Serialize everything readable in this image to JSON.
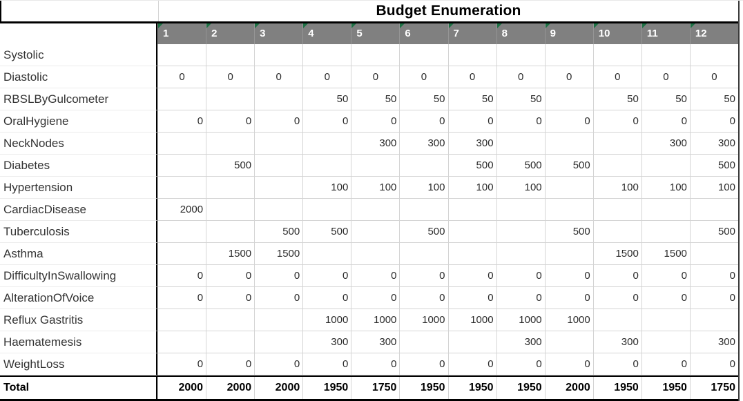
{
  "title": "Budget Enumeration",
  "columns": [
    "1",
    "2",
    "3",
    "4",
    "5",
    "6",
    "7",
    "8",
    "9",
    "10",
    "11",
    "12"
  ],
  "rows": [
    {
      "label": "Systolic",
      "align": "right",
      "values": [
        "",
        "",
        "",
        "",
        "",
        "",
        "",
        "",
        "",
        "",
        "",
        ""
      ]
    },
    {
      "label": "Diastolic",
      "align": "center",
      "values": [
        "0",
        "0",
        "0",
        "0",
        "0",
        "0",
        "0",
        "0",
        "0",
        "0",
        "0",
        "0"
      ]
    },
    {
      "label": "RBSLByGulcometer",
      "align": "right",
      "values": [
        "",
        "",
        "",
        "50",
        "50",
        "50",
        "50",
        "50",
        "",
        "50",
        "50",
        "50"
      ]
    },
    {
      "label": "OralHygiene",
      "align": "right",
      "values": [
        "0",
        "0",
        "0",
        "0",
        "0",
        "0",
        "0",
        "0",
        "0",
        "0",
        "0",
        "0"
      ]
    },
    {
      "label": "NeckNodes",
      "align": "right",
      "values": [
        "",
        "",
        "",
        "",
        "300",
        "300",
        "300",
        "",
        "",
        "",
        "300",
        "300"
      ]
    },
    {
      "label": "Diabetes",
      "align": "right",
      "values": [
        "",
        "500",
        "",
        "",
        "",
        "",
        "500",
        "500",
        "500",
        "",
        "",
        "500"
      ]
    },
    {
      "label": "Hypertension",
      "align": "right",
      "values": [
        "",
        "",
        "",
        "100",
        "100",
        "100",
        "100",
        "100",
        "",
        "100",
        "100",
        "100"
      ]
    },
    {
      "label": "CardiacDisease",
      "align": "right",
      "values": [
        "2000",
        "",
        "",
        "",
        "",
        "",
        "",
        "",
        "",
        "",
        "",
        ""
      ]
    },
    {
      "label": "Tuberculosis",
      "align": "right",
      "values": [
        "",
        "",
        "500",
        "500",
        "",
        "500",
        "",
        "",
        "500",
        "",
        "",
        "500"
      ]
    },
    {
      "label": "Asthma",
      "align": "right",
      "values": [
        "",
        "1500",
        "1500",
        "",
        "",
        "",
        "",
        "",
        "",
        "1500",
        "1500",
        ""
      ]
    },
    {
      "label": "DifficultyInSwallowing",
      "align": "right",
      "values": [
        "0",
        "0",
        "0",
        "0",
        "0",
        "0",
        "0",
        "0",
        "0",
        "0",
        "0",
        "0"
      ]
    },
    {
      "label": "AlterationOfVoice",
      "align": "right",
      "values": [
        "0",
        "0",
        "0",
        "0",
        "0",
        "0",
        "0",
        "0",
        "0",
        "0",
        "0",
        "0"
      ]
    },
    {
      "label": "Reflux Gastritis",
      "align": "right",
      "values": [
        "",
        "",
        "",
        "1000",
        "1000",
        "1000",
        "1000",
        "1000",
        "1000",
        "",
        "",
        ""
      ]
    },
    {
      "label": "Haematemesis",
      "align": "right",
      "values": [
        "",
        "",
        "",
        "300",
        "300",
        "",
        "",
        "300",
        "",
        "300",
        "",
        "300"
      ]
    },
    {
      "label": "WeightLoss",
      "align": "right",
      "values": [
        "0",
        "0",
        "0",
        "0",
        "0",
        "0",
        "0",
        "0",
        "0",
        "0",
        "0",
        "0"
      ]
    }
  ],
  "total": {
    "label": "Total",
    "values": [
      "2000",
      "2000",
      "2000",
      "1950",
      "1750",
      "1950",
      "1950",
      "1950",
      "2000",
      "1950",
      "1950",
      "1750"
    ]
  },
  "icons": {
    "header_corner": "error-indicator-icon"
  },
  "colors": {
    "header-bg": "#808080",
    "header-text": "#ffffff",
    "indicator-green": "#1e7145",
    "gridline": "#d4d4d4",
    "label-gridline": "#ececec",
    "border-black": "#000000",
    "border-dark": "#3a3a3a",
    "value-text": "#2b2b2b",
    "label-text": "#333333"
  }
}
